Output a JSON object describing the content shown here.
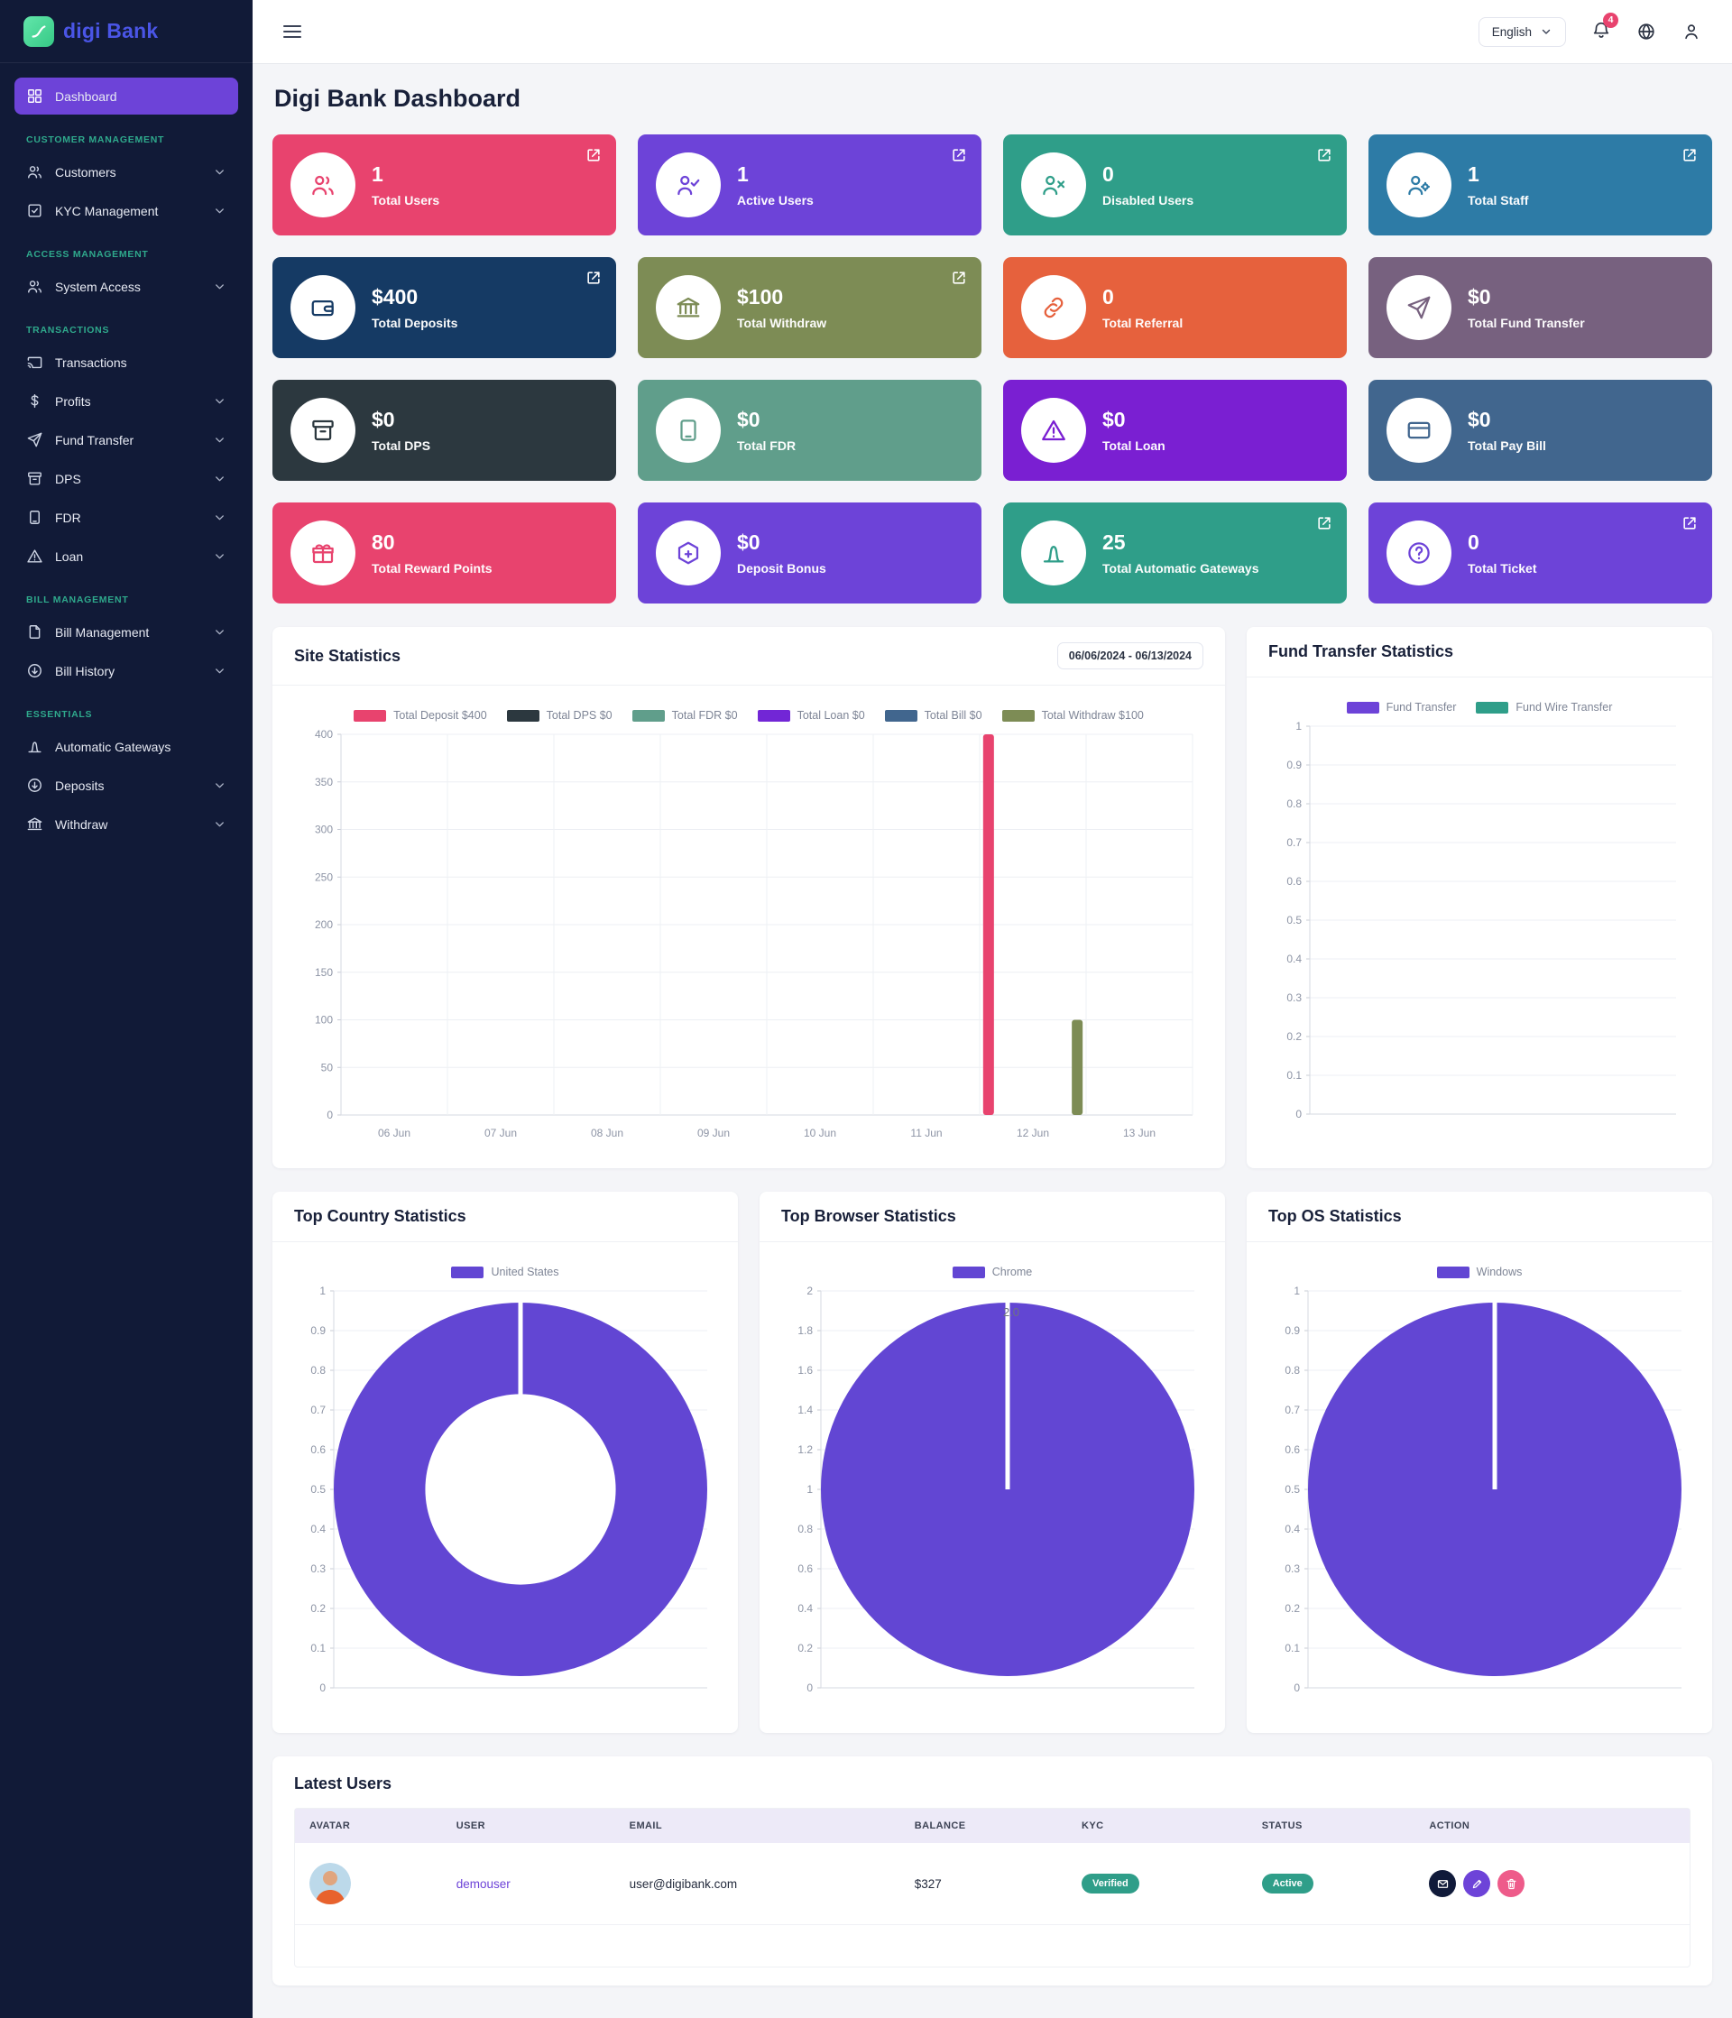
{
  "brand": {
    "logo_icon": "bank-logo-icon",
    "name_primary": "digi",
    "name_secondary": "Bank"
  },
  "topbar": {
    "menu_icon": "hamburger-icon",
    "language_selector": {
      "value": "English",
      "chevron_icon": "chevron-down-icon"
    },
    "notifications": {
      "icon": "bell-icon",
      "badge_count": "4"
    },
    "globe_icon": "globe-icon",
    "profile_icon": "user-icon"
  },
  "page_title": "Digi Bank Dashboard",
  "sidebar": {
    "sections": [
      {
        "header": "",
        "items": [
          {
            "label": "Dashboard",
            "icon": "dashboard-icon",
            "active": true,
            "chevron": false
          }
        ]
      },
      {
        "header": "CUSTOMER MANAGEMENT",
        "items": [
          {
            "label": "Customers",
            "icon": "users-icon",
            "active": false,
            "chevron": true
          },
          {
            "label": "KYC Management",
            "icon": "check-square-icon",
            "active": false,
            "chevron": true
          }
        ]
      },
      {
        "header": "ACCESS MANAGEMENT",
        "items": [
          {
            "label": "System Access",
            "icon": "users-icon",
            "active": false,
            "chevron": true
          }
        ]
      },
      {
        "header": "TRANSACTIONS",
        "items": [
          {
            "label": "Transactions",
            "icon": "cast-icon",
            "active": false,
            "chevron": false
          },
          {
            "label": "Profits",
            "icon": "dollar-icon",
            "active": false,
            "chevron": true
          },
          {
            "label": "Fund Transfer",
            "icon": "send-icon",
            "active": false,
            "chevron": true
          },
          {
            "label": "DPS",
            "icon": "archive-icon",
            "active": false,
            "chevron": true
          },
          {
            "label": "FDR",
            "icon": "tablet-icon",
            "active": false,
            "chevron": true
          },
          {
            "label": "Loan",
            "icon": "alert-triangle-icon",
            "active": false,
            "chevron": true
          }
        ]
      },
      {
        "header": "BILL MANAGEMENT",
        "items": [
          {
            "label": "Bill Management",
            "icon": "file-icon",
            "active": false,
            "chevron": true
          },
          {
            "label": "Bill History",
            "icon": "arrow-down-circle-icon",
            "active": false,
            "chevron": true
          }
        ]
      },
      {
        "header": "ESSENTIALS",
        "items": [
          {
            "label": "Automatic Gateways",
            "icon": "gateway-icon",
            "active": false,
            "chevron": false
          },
          {
            "label": "Deposits",
            "icon": "arrow-down-circle-icon",
            "active": false,
            "chevron": true
          },
          {
            "label": "Withdraw",
            "icon": "bank-icon",
            "active": false,
            "chevron": true
          }
        ]
      }
    ]
  },
  "stat_cards": [
    {
      "value": "1",
      "label": "Total Users",
      "color": "#e8436e",
      "icon": "users-icon",
      "external_link": true
    },
    {
      "value": "1",
      "label": "Active Users",
      "color": "#6d43d8",
      "icon": "user-check-icon",
      "external_link": true
    },
    {
      "value": "0",
      "label": "Disabled Users",
      "color": "#2f9e89",
      "icon": "user-x-icon",
      "external_link": true
    },
    {
      "value": "1",
      "label": "Total Staff",
      "color": "#2d7ba6",
      "icon": "user-gear-icon",
      "external_link": true
    },
    {
      "value": "$400",
      "label": "Total Deposits",
      "color": "#153a64",
      "icon": "wallet-icon",
      "external_link": true
    },
    {
      "value": "$100",
      "label": "Total Withdraw",
      "color": "#7d8c55",
      "icon": "bank-icon",
      "external_link": true
    },
    {
      "value": "0",
      "label": "Total Referral",
      "color": "#e6613d",
      "icon": "link-icon",
      "external_link": false
    },
    {
      "value": "$0",
      "label": "Total Fund Transfer",
      "color": "#77617f",
      "icon": "send-icon",
      "external_link": false
    },
    {
      "value": "$0",
      "label": "Total DPS",
      "color": "#2c383f",
      "icon": "archive-icon",
      "external_link": false
    },
    {
      "value": "$0",
      "label": "Total FDR",
      "color": "#609e8b",
      "icon": "tablet-icon",
      "external_link": false
    },
    {
      "value": "$0",
      "label": "Total Loan",
      "color": "#7a1fd2",
      "icon": "alert-triangle-icon",
      "external_link": false
    },
    {
      "value": "$0",
      "label": "Total Pay Bill",
      "color": "#41668e",
      "icon": "card-icon",
      "external_link": false
    },
    {
      "value": "80",
      "label": "Total Reward Points",
      "color": "#e8436e",
      "icon": "gift-icon",
      "external_link": false
    },
    {
      "value": "$0",
      "label": "Deposit Bonus",
      "color": "#6d43d8",
      "icon": "box-plus-icon",
      "external_link": false
    },
    {
      "value": "25",
      "label": "Total Automatic Gateways",
      "color": "#2f9e89",
      "icon": "gateway-icon",
      "external_link": true
    },
    {
      "value": "0",
      "label": "Total Ticket",
      "color": "#6d43d8",
      "icon": "help-circle-icon",
      "external_link": true
    }
  ],
  "site_statistics": {
    "title": "Site Statistics",
    "date_range": "06/06/2024 - 06/13/2024"
  },
  "fund_transfer_statistics": {
    "title": "Fund Transfer Statistics"
  },
  "top_country_statistics": {
    "title": "Top Country Statistics"
  },
  "top_browser_statistics": {
    "title": "Top Browser Statistics"
  },
  "top_os_statistics": {
    "title": "Top OS Statistics"
  },
  "chart_data": [
    {
      "id": "site",
      "type": "bar",
      "title": "Site Statistics",
      "categories": [
        "06 Jun",
        "07 Jun",
        "08 Jun",
        "09 Jun",
        "10 Jun",
        "11 Jun",
        "12 Jun",
        "13 Jun"
      ],
      "series": [
        {
          "name": "Total Deposit $400",
          "color": "#e8436e",
          "values": [
            0,
            0,
            0,
            0,
            0,
            0,
            400,
            0
          ]
        },
        {
          "name": "Total DPS $0",
          "color": "#2c383f",
          "values": [
            0,
            0,
            0,
            0,
            0,
            0,
            0,
            0
          ]
        },
        {
          "name": "Total FDR $0",
          "color": "#609e8b",
          "values": [
            0,
            0,
            0,
            0,
            0,
            0,
            0,
            0
          ]
        },
        {
          "name": "Total Loan $0",
          "color": "#7226d6",
          "values": [
            0,
            0,
            0,
            0,
            0,
            0,
            0,
            0
          ]
        },
        {
          "name": "Total Bill $0",
          "color": "#41668e",
          "values": [
            0,
            0,
            0,
            0,
            0,
            0,
            0,
            0
          ]
        },
        {
          "name": "Total Withdraw $100",
          "color": "#7d8c55",
          "values": [
            0,
            0,
            0,
            0,
            0,
            0,
            100,
            0
          ]
        }
      ],
      "ylim": [
        0,
        400
      ],
      "ytick": 50,
      "grid": true,
      "legend_position": "top"
    },
    {
      "id": "fund",
      "type": "line",
      "title": "Fund Transfer Statistics",
      "series": [
        {
          "name": "Fund Transfer",
          "color": "#6d43d8",
          "values": []
        },
        {
          "name": "Fund Wire Transfer",
          "color": "#2f9e89",
          "values": []
        }
      ],
      "ylim": [
        0,
        1
      ],
      "ytick": 0.1,
      "grid": true,
      "legend_position": "top"
    },
    {
      "id": "country",
      "type": "donut",
      "title": "Top Country Statistics",
      "labels": [
        "United States"
      ],
      "values": [
        1
      ],
      "color": "#6246d3",
      "ylim": [
        0,
        1
      ],
      "ytick": 0.1,
      "grid": true,
      "legend_position": "top"
    },
    {
      "id": "browser",
      "type": "pie",
      "title": "Top Browser Statistics",
      "labels": [
        "Chrome"
      ],
      "values": [
        2
      ],
      "color": "#6246d3",
      "data_label": "2.0",
      "ylim": [
        0,
        2
      ],
      "ytick": 0.2,
      "grid": true,
      "legend_position": "top"
    },
    {
      "id": "os",
      "type": "pie",
      "title": "Top OS Statistics",
      "labels": [
        "Windows"
      ],
      "values": [
        1
      ],
      "color": "#6246d3",
      "ylim": [
        0,
        1
      ],
      "ytick": 0.1,
      "grid": true,
      "legend_position": "top"
    }
  ],
  "latest_users": {
    "title": "Latest Users",
    "columns": [
      "AVATAR",
      "USER",
      "EMAIL",
      "BALANCE",
      "KYC",
      "STATUS",
      "ACTION"
    ],
    "rows": [
      {
        "user": "demouser",
        "email": "user@digibank.com",
        "balance": "$327",
        "kyc": "Verified",
        "status": "Active",
        "actions": [
          {
            "icon": "mail-icon",
            "color": "#101a3a"
          },
          {
            "icon": "pencil-icon",
            "color": "#6d43d8"
          },
          {
            "icon": "trash-icon",
            "color": "#ee5b8a"
          }
        ]
      }
    ],
    "badge_color": "#2f9e89",
    "link_color": "#6d43d8"
  },
  "colors": {
    "sidebar_bg": "#111a37",
    "active_item": "#6d43d8",
    "section_header": "#2fa98c",
    "page_bg": "#f4f5f8",
    "badge": "#e8436e"
  }
}
